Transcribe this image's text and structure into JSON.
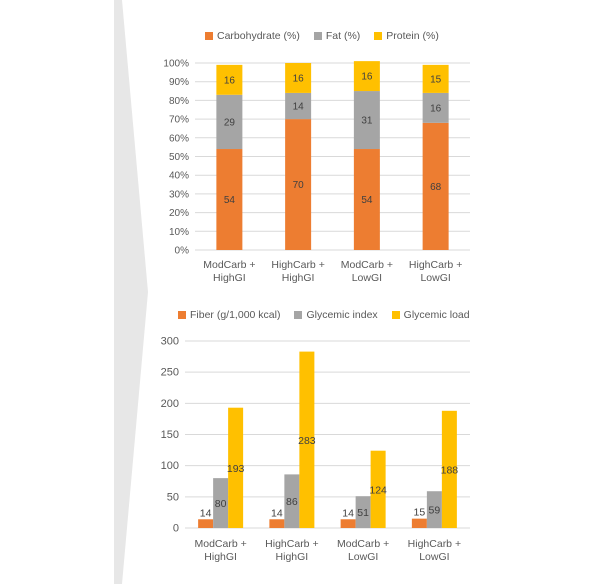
{
  "chart_data": [
    {
      "type": "bar",
      "stacked": true,
      "percent": true,
      "categories": [
        "ModCarb +\nHighGI",
        "HighCarb +\nHighGI",
        "ModCarb +\nLowGI",
        "HighCarb +\nLowGI"
      ],
      "series": [
        {
          "name": "Carbohydrate (%)",
          "color": "#ed7d31",
          "values": [
            54,
            70,
            54,
            68
          ]
        },
        {
          "name": "Fat (%)",
          "color": "#a5a5a5",
          "values": [
            29,
            14,
            31,
            16
          ]
        },
        {
          "name": "Protein (%)",
          "color": "#ffc000",
          "values": [
            16,
            16,
            16,
            15
          ]
        }
      ],
      "ylim": [
        0,
        100
      ],
      "yticks": [
        "0%",
        "10%",
        "20%",
        "30%",
        "40%",
        "50%",
        "60%",
        "70%",
        "80%",
        "90%",
        "100%"
      ],
      "grid": true,
      "legend_position": "top"
    },
    {
      "type": "bar",
      "categories": [
        "ModCarb +\nHighGI",
        "HighCarb +\nHighGI",
        "ModCarb +\nLowGI",
        "HighCarb +\nLowGI"
      ],
      "series": [
        {
          "name": "Fiber (g/1,000 kcal)",
          "color": "#ed7d31",
          "values": [
            14,
            14,
            14,
            15
          ]
        },
        {
          "name": "Glycemic index",
          "color": "#a5a5a5",
          "values": [
            80,
            86,
            51,
            59
          ]
        },
        {
          "name": "Glycemic load",
          "color": "#ffc000",
          "values": [
            193,
            283,
            124,
            188
          ]
        }
      ],
      "ylim": [
        0,
        300
      ],
      "yticks": [
        "0",
        "50",
        "100",
        "150",
        "200",
        "250",
        "300"
      ],
      "grid": true,
      "legend_position": "top"
    }
  ]
}
